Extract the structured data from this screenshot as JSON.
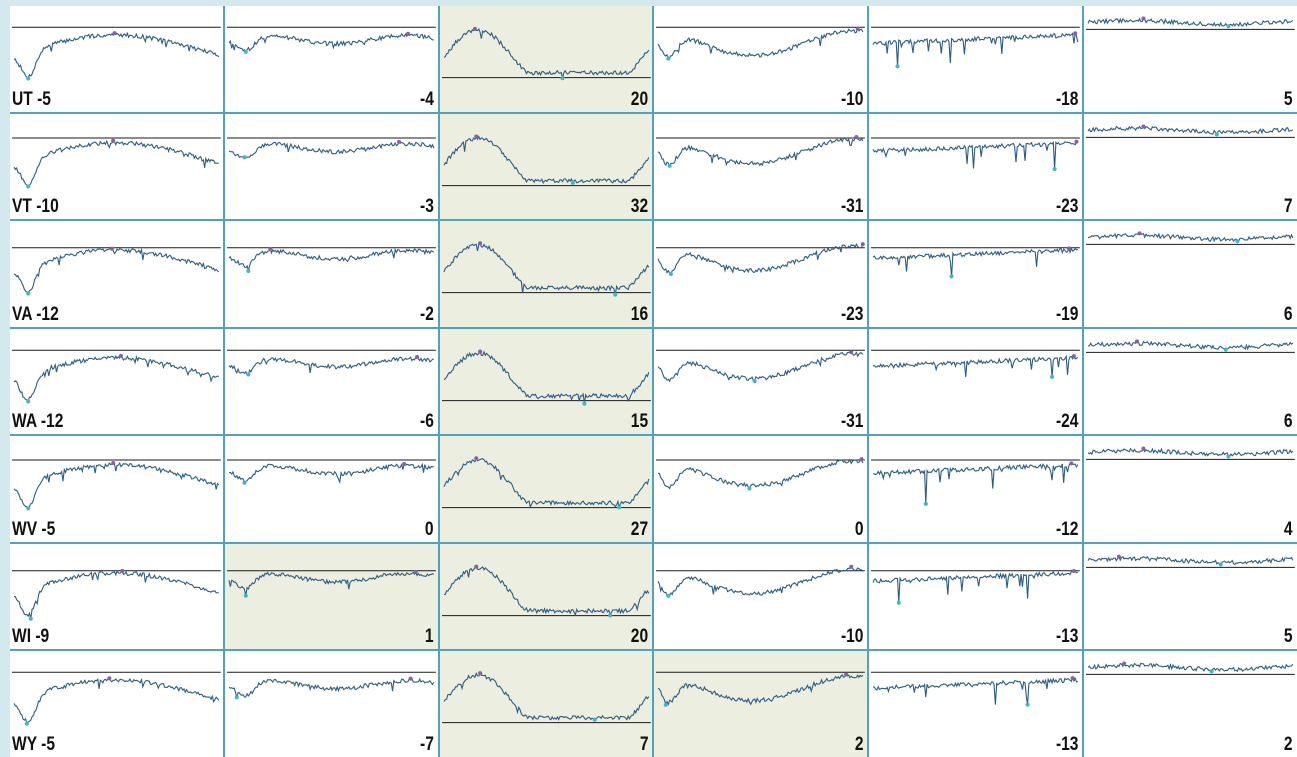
{
  "colors": {
    "line": "#2c5d86",
    "baseline": "#1a1a1a",
    "min_marker": "#3fb7c4",
    "max_marker": "#8a5fa8",
    "highlight": "#ecefdf",
    "grid": "#4fa3bd"
  },
  "chart_data": {
    "type": "line",
    "layout": "small-multiples",
    "columns": 6,
    "rows": [
      {
        "state": "UT",
        "values": [
          -5,
          -4,
          20,
          -10,
          -18,
          5
        ],
        "highlighted": [
          false,
          false,
          true,
          false,
          false,
          false
        ]
      },
      {
        "state": "VT",
        "values": [
          -10,
          -3,
          32,
          -31,
          -23,
          7
        ],
        "highlighted": [
          false,
          false,
          true,
          false,
          false,
          false
        ]
      },
      {
        "state": "VA",
        "values": [
          -12,
          -2,
          16,
          -23,
          -19,
          6
        ],
        "highlighted": [
          false,
          false,
          true,
          false,
          false,
          false
        ]
      },
      {
        "state": "WA",
        "values": [
          -12,
          -6,
          15,
          -31,
          -24,
          6
        ],
        "highlighted": [
          false,
          false,
          true,
          false,
          false,
          false
        ]
      },
      {
        "state": "WV",
        "values": [
          -5,
          0,
          27,
          0,
          -12,
          4
        ],
        "highlighted": [
          false,
          false,
          true,
          false,
          false,
          false
        ]
      },
      {
        "state": "WI",
        "values": [
          -9,
          1,
          20,
          -10,
          -13,
          5
        ],
        "highlighted": [
          false,
          true,
          true,
          false,
          false,
          false
        ]
      },
      {
        "state": "WY",
        "values": [
          -5,
          -7,
          7,
          2,
          -13,
          2
        ],
        "highlighted": [
          false,
          false,
          true,
          true,
          false,
          false
        ]
      }
    ]
  }
}
